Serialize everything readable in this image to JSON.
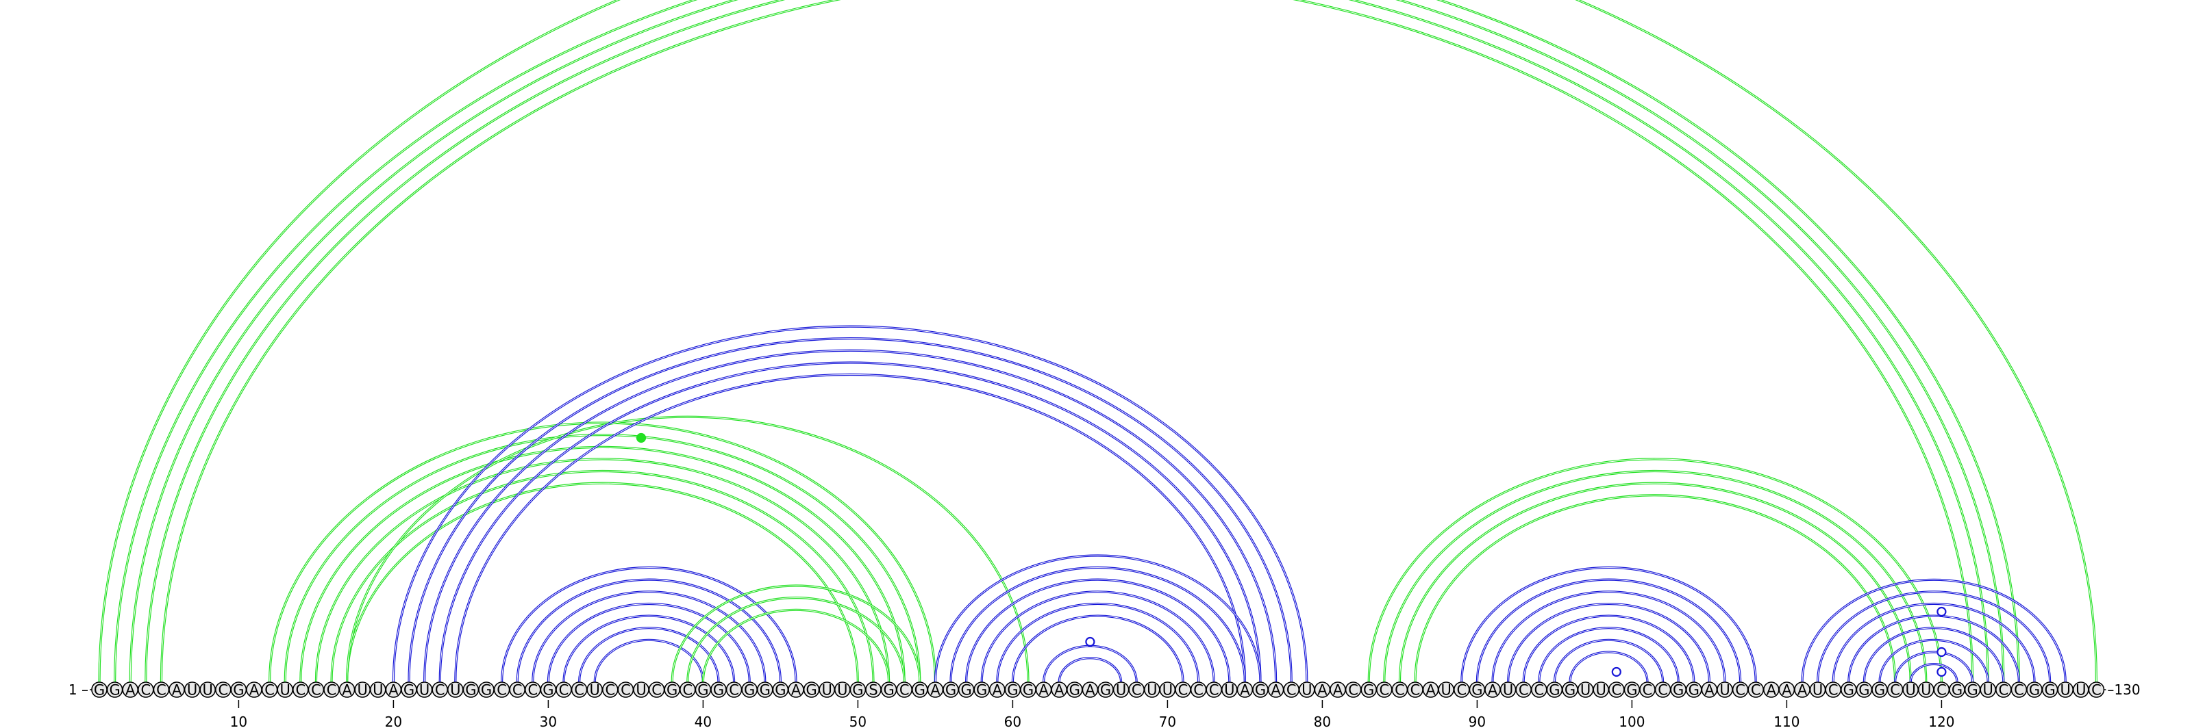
{
  "sequence": "GGACCAUUCGACUCCCAUUAGUCUGGCCCGCCUCCUCGCGGCGGGAGUUGSGCGAGGGAGGAAGAGUCUUCCCUAGACUAACGCCCAUCGAUCCGGUUCGCCGGAUCCAAAUCGGGCUUCGGUCCGGUUC",
  "start_label": "1 –",
  "end_label": "–130",
  "ticks": [
    {
      "position": 10,
      "label": "10"
    },
    {
      "position": 20,
      "label": "20"
    },
    {
      "position": 30,
      "label": "30"
    },
    {
      "position": 40,
      "label": "40"
    },
    {
      "position": 50,
      "label": "50"
    },
    {
      "position": 60,
      "label": "60"
    },
    {
      "position": 70,
      "label": "70"
    },
    {
      "position": 80,
      "label": "80"
    },
    {
      "position": 90,
      "label": "90"
    },
    {
      "position": 100,
      "label": "100"
    },
    {
      "position": 110,
      "label": "110"
    },
    {
      "position": 120,
      "label": "120"
    }
  ],
  "colors": {
    "green": "#22e022",
    "blue": "#1818d8",
    "backbone": "#000000",
    "nucleotide_fill": "#e8e8e8"
  },
  "helices": [
    {
      "color": "green",
      "i": 1,
      "j": 130,
      "n": 1
    },
    {
      "color": "green",
      "i": 2,
      "j": 125,
      "n": 4
    },
    {
      "color": "green",
      "i": 12,
      "j": 55,
      "n": 6
    },
    {
      "color": "green",
      "i": 17,
      "j": 61,
      "n": 1
    },
    {
      "color": "blue",
      "i": 20,
      "j": 79,
      "n": 5
    },
    {
      "color": "blue",
      "i": 27,
      "j": 46,
      "n": 7
    },
    {
      "color": "green",
      "i": 38,
      "j": 54,
      "n": 3
    },
    {
      "color": "blue",
      "i": 55,
      "j": 76,
      "n": 6
    },
    {
      "color": "blue",
      "i": 62,
      "j": 68,
      "n": 2
    },
    {
      "color": "green",
      "i": 83,
      "j": 120,
      "n": 4
    },
    {
      "color": "blue",
      "i": 89,
      "j": 108,
      "n": 8
    },
    {
      "color": "blue",
      "i": 111,
      "j": 128,
      "n": 8
    }
  ],
  "markers": [
    {
      "color": "green",
      "position": 36,
      "style": "filled"
    },
    {
      "color": "blue",
      "position": 65,
      "style": "open"
    },
    {
      "color": "blue",
      "position": 99,
      "style": "open"
    },
    {
      "color": "blue",
      "position": 120,
      "style": "open"
    },
    {
      "color": "blue",
      "position": 120,
      "style": "open"
    },
    {
      "color": "blue",
      "position": 120,
      "style": "open"
    }
  ]
}
